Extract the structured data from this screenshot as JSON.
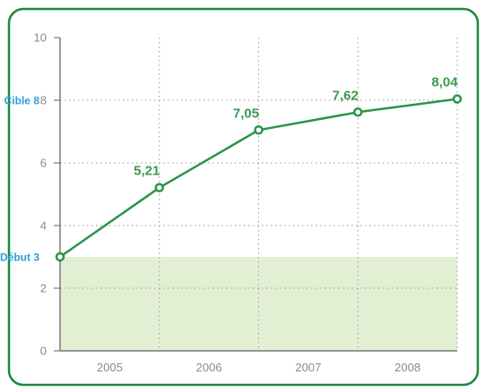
{
  "colors": {
    "border": "#1b8a3a",
    "line": "#2a9447",
    "label": "#3a9a4f",
    "band": "#e2efd3",
    "side_label": "#2a9fd6"
  },
  "chart_data": {
    "type": "line",
    "x": [
      "2005",
      "2006",
      "2007",
      "2008"
    ],
    "points": [
      {
        "x": 2004.5,
        "y": 3.0
      },
      {
        "x": 2005.5,
        "y": 5.21
      },
      {
        "x": 2006.5,
        "y": 7.05
      },
      {
        "x": 2007.5,
        "y": 7.62
      },
      {
        "x": 2008.5,
        "y": 8.04
      }
    ],
    "data_labels": [
      "",
      "5,21",
      "7,05",
      "7,62",
      "8,04"
    ],
    "yticks": [
      "0",
      "2",
      "4",
      "6",
      "8",
      "10"
    ],
    "ylim": [
      0,
      10
    ],
    "xlim": [
      2004.5,
      2008.5
    ],
    "grid": true,
    "band": {
      "from": 0,
      "to": 3
    },
    "reference_labels": [
      {
        "text": "Cible 8",
        "y": 8
      },
      {
        "text": "Début 3",
        "y": 3
      }
    ]
  }
}
